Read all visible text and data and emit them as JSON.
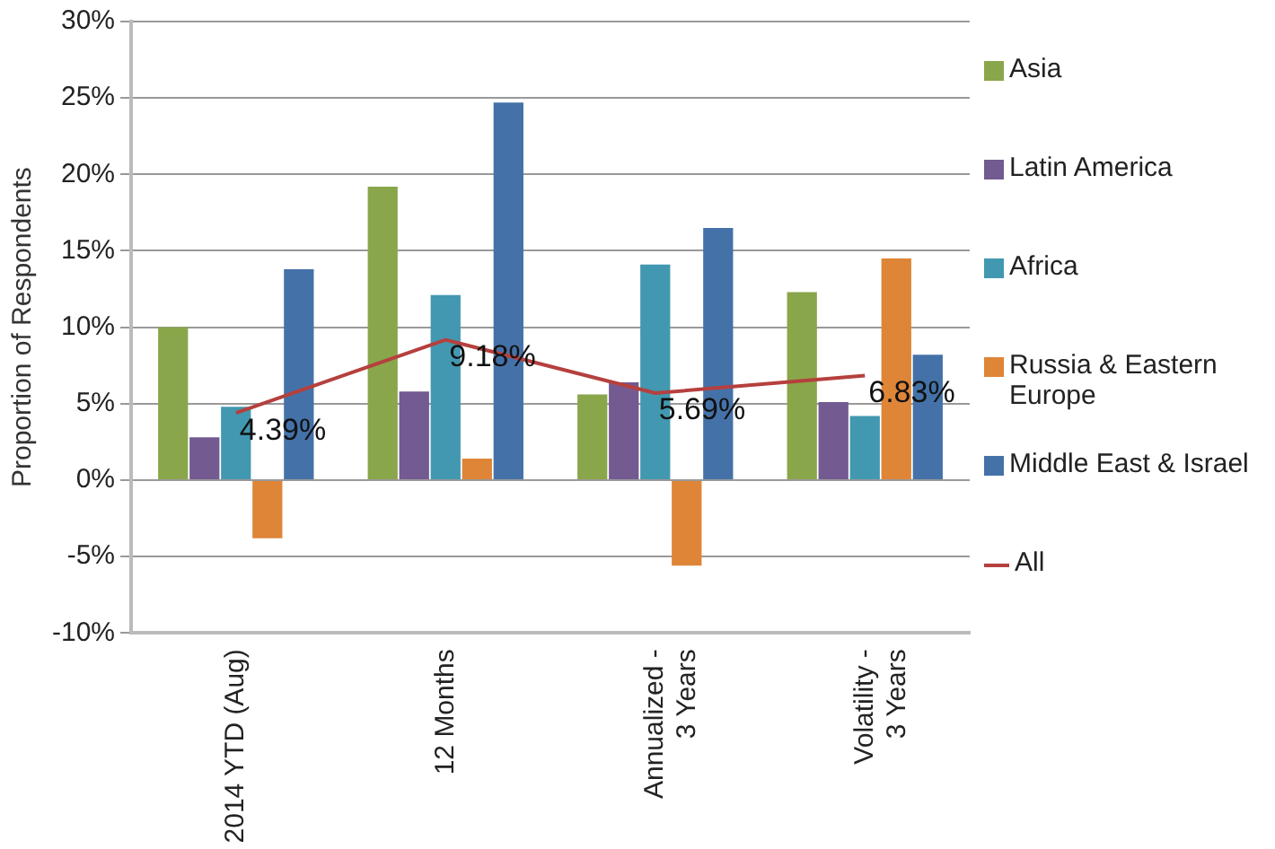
{
  "chart_data": {
    "type": "bar",
    "ylabel": "Proportion of Respondents",
    "categories": [
      "2014 YTD (Aug)",
      "12 Months",
      "Annualized - 3 Years",
      "Volatility - 3 Years"
    ],
    "series": [
      {
        "name": "Asia",
        "color": "#8aa64a",
        "values": [
          10.0,
          19.2,
          5.6,
          12.3
        ]
      },
      {
        "name": "Latin America",
        "color": "#735a91",
        "values": [
          2.8,
          5.8,
          6.4,
          5.1
        ]
      },
      {
        "name": "Africa",
        "color": "#4298b0",
        "values": [
          4.8,
          12.1,
          14.1,
          4.2
        ]
      },
      {
        "name": "Russia & Eastern Europe",
        "color": "#de8538",
        "values": [
          -3.8,
          1.4,
          -5.6,
          14.5
        ]
      },
      {
        "name": "Middle East & Israel",
        "color": "#4472a8",
        "values": [
          13.8,
          24.7,
          16.5,
          8.2
        ]
      },
      {
        "name": "All",
        "type": "line",
        "color": "#b5403e",
        "values": [
          4.39,
          9.18,
          5.69,
          6.83
        ],
        "value_labels": [
          "4.39%",
          "9.18%",
          "5.69%",
          "6.83%"
        ]
      }
    ],
    "ylim": [
      -10,
      30
    ],
    "yticks": [
      {
        "value": -10,
        "label": "-10%"
      },
      {
        "value": -5,
        "label": "-5%"
      },
      {
        "value": 0,
        "label": "0%"
      },
      {
        "value": 5,
        "label": "5%"
      },
      {
        "value": 10,
        "label": "10%"
      },
      {
        "value": 15,
        "label": "15%"
      },
      {
        "value": 20,
        "label": "20%"
      },
      {
        "value": 25,
        "label": "25%"
      },
      {
        "value": 30,
        "label": "30%"
      }
    ],
    "grid": "y",
    "legend": "right",
    "marker": "none",
    "line_style": "solid"
  }
}
